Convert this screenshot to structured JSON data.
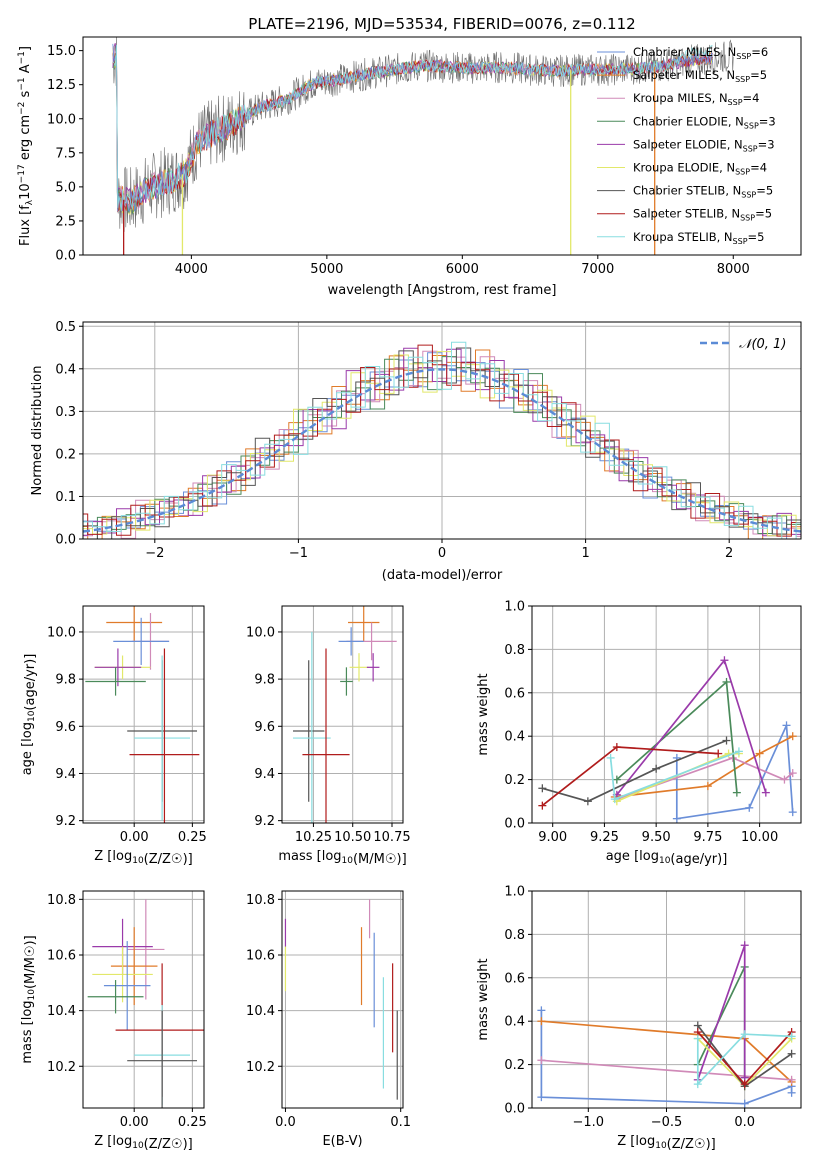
{
  "figure": {
    "title": "PLATE=2196, MJD=53534, FIBERID=0076, z=0.112",
    "colors": {
      "cm": "#6a8fd8",
      "sm": "#e07b2a",
      "km": "#d08ab8",
      "ce": "#4a8a5a",
      "se": "#9a3aaa",
      "ke": "#e2e86a",
      "cs": "#555555",
      "ss": "#b01c1c",
      "ks": "#88dde0"
    }
  },
  "chart_data": [
    {
      "id": "spectrum",
      "type": "line",
      "title": "PLATE=2196, MJD=53534, FIBERID=0076, z=0.112",
      "xlabel": "wavelength [Angstrom, rest frame]",
      "ylabel_parts": [
        "Flux [f",
        "λ",
        "10",
        "−17",
        " erg cm",
        "−2",
        " s",
        "−1",
        " A",
        "−1",
        "]"
      ],
      "xlim": [
        3200,
        8500
      ],
      "ylim": [
        0,
        16
      ],
      "xticks": [
        "4000",
        "5000",
        "6000",
        "7000",
        "8000"
      ],
      "yticks": [
        "0.0",
        "2.5",
        "5.0",
        "7.5",
        "10.0",
        "12.5",
        "15.0"
      ],
      "legend_position": "upper right",
      "series": [
        {
          "name": "Chabrier MILES, N",
          "sub": "SSP",
          "val": "=6",
          "ckey": "cm"
        },
        {
          "name": "Salpeter MILES, N",
          "sub": "SSP",
          "val": "=5",
          "ckey": "sm"
        },
        {
          "name": "Kroupa MILES, N",
          "sub": "SSP",
          "val": "=4",
          "ckey": "km"
        },
        {
          "name": "Chabrier ELODIE, N",
          "sub": "SSP",
          "val": "=3",
          "ckey": "ce"
        },
        {
          "name": "Salpeter ELODIE, N",
          "sub": "SSP",
          "val": "=3",
          "ckey": "se"
        },
        {
          "name": "Kroupa ELODIE, N",
          "sub": "SSP",
          "val": "=4",
          "ckey": "ke"
        },
        {
          "name": "Chabrier STELIB, N",
          "sub": "SSP",
          "val": "=5",
          "ckey": "cs"
        },
        {
          "name": "Salpeter STELIB, N",
          "sub": "SSP",
          "val": "=5",
          "ckey": "ss"
        },
        {
          "name": "Kroupa STELIB, N",
          "sub": "SSP",
          "val": "=5",
          "ckey": "ks"
        }
      ],
      "data_sketch": {
        "x": [
          3450,
          3550,
          3650,
          3750,
          3850,
          3950,
          4050,
          4150,
          4300,
          4500,
          4700,
          4900,
          5100,
          5300,
          5500,
          5700,
          5900,
          6100,
          6300,
          6500,
          6700,
          6900,
          7100,
          7300,
          7500,
          7700,
          7900,
          8000
        ],
        "y": [
          4.2,
          3.9,
          4.7,
          5.2,
          5.5,
          6.0,
          8.3,
          8.9,
          9.6,
          10.8,
          11.4,
          12.6,
          12.9,
          13.3,
          13.6,
          13.9,
          13.8,
          13.7,
          13.8,
          13.6,
          13.5,
          13.6,
          13.6,
          13.7,
          13.9,
          14.3,
          14.5,
          14.6
        ],
        "dips": [
          [
            3934,
            0
          ],
          [
            6800,
            0
          ],
          [
            7420,
            0
          ],
          [
            3500,
            0
          ]
        ]
      }
    },
    {
      "id": "residuals",
      "type": "histogram",
      "xlabel": "(data-model)/error",
      "ylabel": "Normed distribution",
      "xlim": [
        -2.5,
        2.5
      ],
      "ylim": [
        0,
        0.51
      ],
      "xticks": [
        "−2",
        "−1",
        "0",
        "1",
        "2"
      ],
      "xtick_values": [
        -2,
        -1,
        0,
        1,
        2
      ],
      "yticks": [
        "0.0",
        "0.1",
        "0.2",
        "0.3",
        "0.4",
        "0.5"
      ],
      "ytick_values": [
        0,
        0.1,
        0.2,
        0.3,
        0.4,
        0.5
      ],
      "legend": "𝒩(0, 1)",
      "legend_position": "upper right",
      "bin_width": 0.1,
      "reference_curve": "gaussian mean 0 sigma 1",
      "bin_noise": [
        0.01,
        -0.03,
        0.04,
        0.02,
        -0.05,
        0.06,
        -0.02,
        0.03,
        -0.04,
        0.05
      ]
    },
    {
      "id": "age_vs_Z",
      "type": "errorbar",
      "xlabel": "Z [log10(Z/Z☉)]",
      "ylabel": "age  [log10(age/yr)]",
      "xlim": [
        -0.22,
        0.3
      ],
      "ylim": [
        9.19,
        10.11
      ],
      "xticks": [
        "0.00",
        "0.25"
      ],
      "xtick_values": [
        0,
        0.25
      ],
      "yticks": [
        "9.2",
        "9.4",
        "9.6",
        "9.8",
        "10.0"
      ],
      "ytick_values": [
        9.2,
        9.4,
        9.6,
        9.8,
        10.0
      ],
      "points": [
        {
          "ckey": "sm",
          "x": 0.0,
          "y": 10.04,
          "xerr": 0.12,
          "yerr": 0.08
        },
        {
          "ckey": "km",
          "x": 0.07,
          "y": 9.96,
          "xerr": 0.08,
          "yerr": 0.12
        },
        {
          "ckey": "cm",
          "x": 0.03,
          "y": 9.96,
          "xerr": 0.12,
          "yerr": 0.1
        },
        {
          "ckey": "ke",
          "x": -0.05,
          "y": 9.85,
          "xerr": 0.12,
          "yerr": 0.05
        },
        {
          "ckey": "se",
          "x": -0.07,
          "y": 9.85,
          "xerr": 0.1,
          "yerr": 0.08
        },
        {
          "ckey": "ce",
          "x": -0.08,
          "y": 9.79,
          "xerr": 0.13,
          "yerr": 0.06
        },
        {
          "ckey": "cs",
          "x": 0.12,
          "y": 9.58,
          "xerr": 0.15,
          "yerr": 0.3
        },
        {
          "ckey": "ks",
          "x": 0.12,
          "y": 9.55,
          "xerr": 0.12,
          "yerr": 0.35
        },
        {
          "ckey": "ss",
          "x": 0.13,
          "y": 9.48,
          "xerr": 0.15,
          "yerr": 0.45
        }
      ]
    },
    {
      "id": "age_vs_mass",
      "type": "errorbar",
      "xlabel": "mass [log10(M/M☉)]",
      "xlim": [
        10.05,
        10.82
      ],
      "ylim": [
        9.19,
        10.11
      ],
      "xticks": [
        "10.25",
        "10.50",
        "10.75"
      ],
      "xtick_values": [
        10.25,
        10.5,
        10.75
      ],
      "yticks": [
        "9.2",
        "9.4",
        "9.6",
        "9.8",
        "10.0"
      ],
      "ytick_values": [
        9.2,
        9.4,
        9.6,
        9.8,
        10.0
      ],
      "points": [
        {
          "ckey": "sm",
          "x": 10.57,
          "y": 10.04,
          "xerr": 0.1,
          "yerr": 0.08
        },
        {
          "ckey": "km",
          "x": 10.62,
          "y": 9.96,
          "xerr": 0.16,
          "yerr": 0.08
        },
        {
          "ckey": "cm",
          "x": 10.49,
          "y": 9.96,
          "xerr": 0.08,
          "yerr": 0.06
        },
        {
          "ckey": "ke",
          "x": 10.54,
          "y": 9.85,
          "xerr": 0.06,
          "yerr": 0.06
        },
        {
          "ckey": "se",
          "x": 10.63,
          "y": 9.85,
          "xerr": 0.04,
          "yerr": 0.06
        },
        {
          "ckey": "ce",
          "x": 10.46,
          "y": 9.79,
          "xerr": 0.04,
          "yerr": 0.06
        },
        {
          "ckey": "cs",
          "x": 10.22,
          "y": 9.58,
          "xerr": 0.1,
          "yerr": 0.3
        },
        {
          "ckey": "ks",
          "x": 10.24,
          "y": 9.55,
          "xerr": 0.12,
          "yerr": 0.45
        },
        {
          "ckey": "ss",
          "x": 10.33,
          "y": 9.48,
          "xerr": 0.15,
          "yerr": 0.45
        }
      ]
    },
    {
      "id": "weight_vs_age",
      "type": "line",
      "xlabel": "age  [log10(age/yr)]",
      "ylabel": "mass weight",
      "xlim": [
        8.9,
        10.2
      ],
      "ylim": [
        0,
        1
      ],
      "xticks": [
        "9.00",
        "9.25",
        "9.50",
        "9.75",
        "10.00"
      ],
      "xtick_values": [
        9.0,
        9.25,
        9.5,
        9.75,
        10.0
      ],
      "yticks": [
        "0.0",
        "0.2",
        "0.4",
        "0.6",
        "0.8",
        "1.0"
      ],
      "ytick_values": [
        0,
        0.2,
        0.4,
        0.6,
        0.8,
        1.0
      ],
      "series": [
        {
          "ckey": "cm",
          "points": [
            [
              9.6,
              0.3
            ],
            [
              9.6,
              0.02
            ],
            [
              9.95,
              0.07
            ],
            [
              10.13,
              0.45
            ],
            [
              10.16,
              0.05
            ]
          ]
        },
        {
          "ckey": "sm",
          "points": [
            [
              9.3,
              0.12
            ],
            [
              9.75,
              0.17
            ],
            [
              10.0,
              0.32
            ],
            [
              10.16,
              0.4
            ]
          ]
        },
        {
          "ckey": "km",
          "points": [
            [
              9.31,
              0.11
            ],
            [
              9.87,
              0.3
            ],
            [
              10.12,
              0.2
            ],
            [
              10.16,
              0.23
            ]
          ]
        },
        {
          "ckey": "ce",
          "points": [
            [
              9.31,
              0.2
            ],
            [
              9.84,
              0.65
            ],
            [
              9.89,
              0.14
            ]
          ]
        },
        {
          "ckey": "se",
          "points": [
            [
              9.31,
              0.13
            ],
            [
              9.83,
              0.75
            ],
            [
              10.03,
              0.14
            ]
          ]
        },
        {
          "ckey": "ke",
          "points": [
            [
              9.31,
              0.1
            ],
            [
              9.85,
              0.32
            ],
            [
              9.9,
              0.32
            ]
          ]
        },
        {
          "ckey": "cs",
          "points": [
            [
              8.95,
              0.16
            ],
            [
              9.17,
              0.1
            ],
            [
              9.5,
              0.25
            ],
            [
              9.84,
              0.38
            ]
          ]
        },
        {
          "ckey": "ss",
          "points": [
            [
              8.95,
              0.08
            ],
            [
              9.31,
              0.35
            ],
            [
              9.8,
              0.32
            ]
          ]
        },
        {
          "ckey": "ks",
          "points": [
            [
              9.28,
              0.3
            ],
            [
              9.3,
              0.11
            ],
            [
              9.9,
              0.33
            ]
          ]
        }
      ]
    },
    {
      "id": "mass_vs_Z",
      "type": "errorbar",
      "xlabel": "Z [log10(Z/Z☉)]",
      "ylabel": "mass [log10(M/M☉)]",
      "xlim": [
        -0.22,
        0.3
      ],
      "ylim": [
        10.05,
        10.83
      ],
      "xticks": [
        "0.00",
        "0.25"
      ],
      "xtick_values": [
        0,
        0.25
      ],
      "yticks": [
        "10.2",
        "10.4",
        "10.6",
        "10.8"
      ],
      "ytick_values": [
        10.2,
        10.4,
        10.6,
        10.8
      ],
      "points": [
        {
          "ckey": "km",
          "x": 0.05,
          "y": 10.62,
          "xerr": 0.08,
          "yerr": 0.18
        },
        {
          "ckey": "se",
          "x": -0.05,
          "y": 10.63,
          "xerr": 0.13,
          "yerr": 0.1
        },
        {
          "ckey": "sm",
          "x": 0.0,
          "y": 10.56,
          "xerr": 0.1,
          "yerr": 0.14
        },
        {
          "ckey": "ke",
          "x": -0.05,
          "y": 10.53,
          "xerr": 0.13,
          "yerr": 0.1
        },
        {
          "ckey": "cm",
          "x": -0.03,
          "y": 10.49,
          "xerr": 0.1,
          "yerr": 0.16
        },
        {
          "ckey": "ce",
          "x": -0.08,
          "y": 10.45,
          "xerr": 0.12,
          "yerr": 0.06
        },
        {
          "ckey": "ss",
          "x": 0.12,
          "y": 10.33,
          "xerr": 0.2,
          "yerr": 0.24
        },
        {
          "ckey": "ks",
          "x": 0.12,
          "y": 10.24,
          "xerr": 0.12,
          "yerr": 0.18
        },
        {
          "ckey": "cs",
          "x": 0.12,
          "y": 10.22,
          "xerr": 0.15,
          "yerr": 0.18
        }
      ]
    },
    {
      "id": "mass_vs_ebv",
      "type": "errorbar",
      "xlabel": "E(B-V)",
      "xlim": [
        -0.003,
        0.102
      ],
      "ylim": [
        10.05,
        10.83
      ],
      "xticks": [
        "0.0",
        "0.1"
      ],
      "xtick_values": [
        0,
        0.1
      ],
      "yticks": [
        "10.2",
        "10.4",
        "10.6",
        "10.8"
      ],
      "ytick_values": [
        10.2,
        10.4,
        10.6,
        10.8
      ],
      "points": [
        {
          "ckey": "se",
          "x": 0.0,
          "y": 10.68,
          "xerr": 0,
          "yerr": 0.05
        },
        {
          "ckey": "ke",
          "x": 0.0,
          "y": 10.55,
          "xerr": 0,
          "yerr": 0.08
        },
        {
          "ckey": "km",
          "x": 0.073,
          "y": 10.73,
          "xerr": 0,
          "yerr": 0.07
        },
        {
          "ckey": "sm",
          "x": 0.066,
          "y": 10.56,
          "xerr": 0,
          "yerr": 0.14
        },
        {
          "ckey": "cm",
          "x": 0.077,
          "y": 10.51,
          "xerr": 0,
          "yerr": 0.17
        },
        {
          "ckey": "ss",
          "x": 0.093,
          "y": 10.41,
          "xerr": 0,
          "yerr": 0.16
        },
        {
          "ckey": "ks",
          "x": 0.085,
          "y": 10.32,
          "xerr": 0,
          "yerr": 0.2
        },
        {
          "ckey": "cs",
          "x": 0.097,
          "y": 10.24,
          "xerr": 0,
          "yerr": 0.16
        }
      ]
    },
    {
      "id": "weight_vs_Z",
      "type": "line",
      "xlabel": "Z [log10(Z/Z☉)]",
      "ylabel": "mass weight",
      "xlim": [
        -1.36,
        0.36
      ],
      "ylim": [
        0,
        1
      ],
      "xticks": [
        "−1.0",
        "−0.5",
        "0.0"
      ],
      "xtick_values": [
        -1.0,
        -0.5,
        0.0
      ],
      "yticks": [
        "0.0",
        "0.2",
        "0.4",
        "0.6",
        "0.8",
        "1.0"
      ],
      "ytick_values": [
        0,
        0.2,
        0.4,
        0.6,
        0.8,
        1.0
      ],
      "series": [
        {
          "ckey": "cm",
          "points": [
            [
              -1.3,
              0.45
            ],
            [
              -1.3,
              0.05
            ],
            [
              0.0,
              0.02
            ],
            [
              0.3,
              0.1
            ],
            [
              0.3,
              0.07
            ]
          ]
        },
        {
          "ckey": "sm",
          "points": [
            [
              -1.3,
              0.4
            ],
            [
              0.0,
              0.32
            ],
            [
              0.3,
              0.12
            ]
          ]
        },
        {
          "ckey": "km",
          "points": [
            [
              -1.3,
              0.22
            ],
            [
              0.3,
              0.13
            ]
          ]
        },
        {
          "ckey": "ce",
          "points": [
            [
              -0.3,
              0.2
            ],
            [
              0.0,
              0.65
            ],
            [
              0.0,
              0.14
            ]
          ]
        },
        {
          "ckey": "se",
          "points": [
            [
              -0.3,
              0.13
            ],
            [
              0.0,
              0.75
            ],
            [
              0.0,
              0.14
            ]
          ]
        },
        {
          "ckey": "ke",
          "points": [
            [
              -0.3,
              0.32
            ],
            [
              0.0,
              0.1
            ],
            [
              0.3,
              0.32
            ]
          ]
        },
        {
          "ckey": "cs",
          "points": [
            [
              -0.3,
              0.38
            ],
            [
              0.0,
              0.1
            ],
            [
              0.3,
              0.25
            ]
          ]
        },
        {
          "ckey": "ss",
          "points": [
            [
              -0.3,
              0.35
            ],
            [
              0.0,
              0.11
            ],
            [
              0.3,
              0.35
            ]
          ]
        },
        {
          "ckey": "ks",
          "points": [
            [
              -0.3,
              0.32
            ],
            [
              -0.3,
              0.11
            ],
            [
              0.0,
              0.34
            ],
            [
              0.3,
              0.33
            ]
          ]
        }
      ]
    }
  ]
}
